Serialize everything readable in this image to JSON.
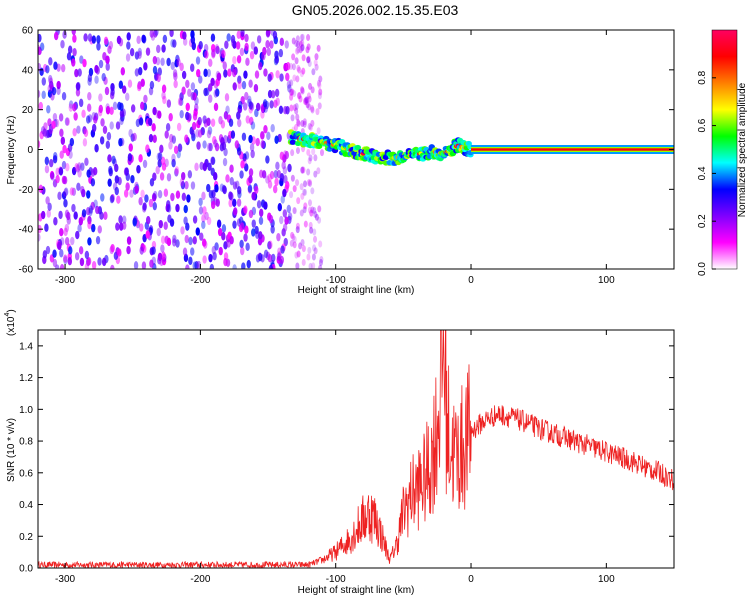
{
  "title": "GN05.2026.002.15.35.E03",
  "chart_data": [
    {
      "type": "heatmap",
      "xlabel": "Height of straight line (km)",
      "ylabel": "Frequency (Hz)",
      "xlim": [
        -320,
        150
      ],
      "ylim": [
        -60,
        60
      ],
      "x_ticks": [
        -300,
        -200,
        -100,
        0,
        100
      ],
      "y_ticks": [
        -60,
        -40,
        -20,
        0,
        20,
        40,
        60
      ],
      "colorbar": {
        "label": "Normalized spectral amplitude",
        "range": [
          0,
          1
        ],
        "ticks": [
          "0.0",
          "0.2",
          "0.4",
          "0.6",
          "0.8"
        ],
        "colormap": [
          "#ffffff",
          "#ff00ff",
          "#7f00ff",
          "#0000ff",
          "#00ffff",
          "#00ff00",
          "#ffff00",
          "#ff7f00",
          "#ff0000",
          "#ff0060"
        ]
      },
      "regions": [
        {
          "x_range": [
            -320,
            -133
          ],
          "f_range": [
            -60,
            60
          ],
          "level": 0.25
        },
        {
          "x_range": [
            -133,
            -110
          ],
          "f_range": [
            -60,
            60
          ],
          "level": 0.1
        },
        {
          "x_range": [
            -133,
            0
          ],
          "f_range": [
            -12,
            8
          ],
          "level": 0.45
        },
        {
          "x_range": [
            0,
            150
          ],
          "f_range": [
            -1,
            1
          ],
          "level": 0.9
        }
      ],
      "ridge": [
        {
          "x": -133,
          "f": 6
        },
        {
          "x": -110,
          "f": 4
        },
        {
          "x": -90,
          "f": 0
        },
        {
          "x": -70,
          "f": -4
        },
        {
          "x": -50,
          "f": -4
        },
        {
          "x": -30,
          "f": -1
        },
        {
          "x": -20,
          "f": -2
        },
        {
          "x": -10,
          "f": 2
        },
        {
          "x": 0,
          "f": 0
        },
        {
          "x": 150,
          "f": 0
        }
      ]
    },
    {
      "type": "line",
      "xlabel": "Height of straight line (km)",
      "ylabel": "SNR (10 * v/v)",
      "scale_label": "(x10",
      "scale_exponent": "4",
      "xlim": [
        -320,
        150
      ],
      "ylim": [
        0,
        1.5
      ],
      "x_ticks": [
        -300,
        -200,
        -100,
        0,
        100
      ],
      "y_ticks": [
        "0.0",
        "0.2",
        "0.4",
        "0.6",
        "0.8",
        "1.0",
        "1.2",
        "1.4"
      ],
      "color": "#ee2222",
      "series": [
        {
          "x": [
            -320,
            -250,
            -200,
            -150,
            -120,
            -110,
            -100,
            -90,
            -80,
            -75,
            -70,
            -65,
            -60,
            -55,
            -50,
            -45,
            -40,
            -35,
            -30,
            -25,
            -22,
            -20,
            -18,
            -15,
            -10,
            -5,
            0,
            10,
            20,
            30,
            40,
            50,
            60,
            70,
            80,
            90,
            100,
            110,
            120,
            130,
            140,
            150
          ],
          "values": [
            0.02,
            0.02,
            0.02,
            0.02,
            0.02,
            0.05,
            0.1,
            0.18,
            0.3,
            0.35,
            0.3,
            0.18,
            0.05,
            0.15,
            0.35,
            0.45,
            0.5,
            0.55,
            0.65,
            0.9,
            1.2,
            1.45,
            0.95,
            0.75,
            0.7,
            0.78,
            0.86,
            0.93,
            0.97,
            0.95,
            0.92,
            0.88,
            0.85,
            0.82,
            0.79,
            0.76,
            0.73,
            0.7,
            0.67,
            0.63,
            0.6,
            0.55
          ]
        }
      ]
    }
  ]
}
